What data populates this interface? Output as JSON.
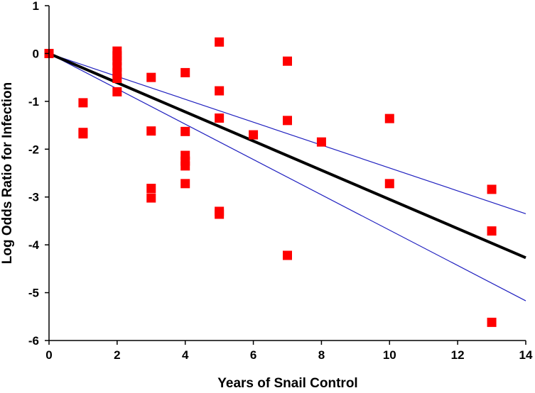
{
  "chart_data": {
    "type": "scatter",
    "title": "",
    "xlabel": "Years of Snail Control",
    "ylabel": "Log Odds Ratio for Infection",
    "xlim": [
      0,
      14
    ],
    "ylim": [
      -6,
      1
    ],
    "xticks": [
      0,
      2,
      4,
      6,
      8,
      10,
      12,
      14
    ],
    "yticks": [
      1,
      0,
      -1,
      -2,
      -3,
      -4,
      -5,
      -6
    ],
    "grid": false,
    "series": [
      {
        "name": "observations",
        "kind": "points",
        "marker": "square",
        "color": "#ff0000",
        "points": [
          [
            0,
            0
          ],
          [
            1,
            -1.03
          ],
          [
            1,
            -1.65
          ],
          [
            1,
            -1.68
          ],
          [
            2,
            0.05
          ],
          [
            2,
            -0.05
          ],
          [
            2,
            -0.15
          ],
          [
            2,
            -0.28
          ],
          [
            2,
            -0.4
          ],
          [
            2,
            -0.52
          ],
          [
            2,
            -0.8
          ],
          [
            3,
            -0.5
          ],
          [
            3,
            -1.62
          ],
          [
            3,
            -2.82
          ],
          [
            3,
            -3.02
          ],
          [
            4,
            -0.4
          ],
          [
            4,
            -1.63
          ],
          [
            4,
            -2.13
          ],
          [
            4,
            -2.25
          ],
          [
            4,
            -2.35
          ],
          [
            4,
            -2.72
          ],
          [
            5,
            0.24
          ],
          [
            5,
            -0.78
          ],
          [
            5,
            -1.35
          ],
          [
            5,
            -3.3
          ],
          [
            5,
            -3.36
          ],
          [
            6,
            -1.7
          ],
          [
            7,
            -0.16
          ],
          [
            7,
            -1.4
          ],
          [
            7,
            -4.22
          ],
          [
            8,
            -1.85
          ],
          [
            10,
            -1.36
          ],
          [
            10,
            -2.72
          ],
          [
            13,
            -2.84
          ],
          [
            13,
            -3.71
          ],
          [
            13,
            -5.62
          ]
        ]
      },
      {
        "name": "regression",
        "kind": "line",
        "color": "#000000",
        "x": [
          0,
          14
        ],
        "y": [
          0,
          -4.27
        ]
      },
      {
        "name": "upper 95% bound",
        "kind": "line",
        "color": "#1f1fbf",
        "x": [
          0,
          14
        ],
        "y": [
          0,
          -3.35
        ]
      },
      {
        "name": "lower 95% bound",
        "kind": "line",
        "color": "#1f1fbf",
        "x": [
          0,
          14
        ],
        "y": [
          0,
          -5.17
        ]
      }
    ]
  }
}
